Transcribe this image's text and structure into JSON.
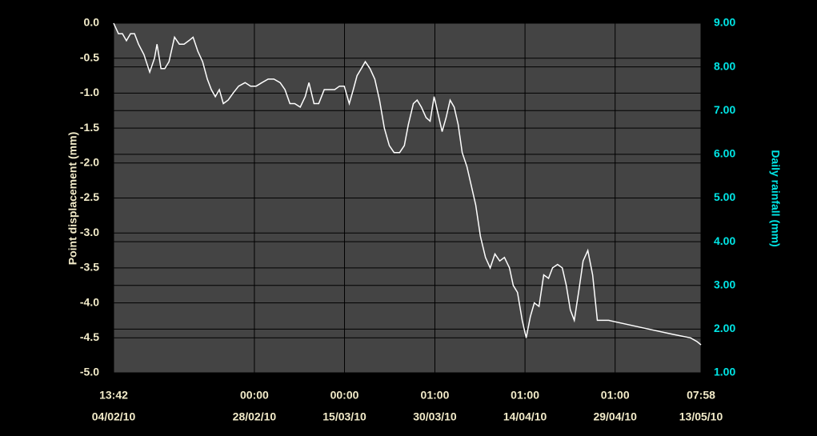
{
  "chart_data": {
    "type": "line",
    "ylabel": "Point displacement (mm)",
    "y2label": "Daily rainfall (mm)",
    "ylim": [
      -5,
      0
    ],
    "yticks": [
      {
        "value": 0,
        "label": "0.0"
      },
      -0.5,
      {
        "value": -1,
        "label": "-1.0"
      },
      -1.5,
      {
        "value": -2,
        "label": "-2.0"
      },
      -2.5,
      {
        "value": -3,
        "label": "-3.0"
      },
      -3.5,
      {
        "value": -4,
        "label": "-4.0"
      },
      -4.5,
      {
        "value": -5,
        "label": "-5.0"
      }
    ],
    "y2lim": [
      1,
      9
    ],
    "y2ticks": [
      {
        "value": 9,
        "label": "9.00"
      },
      {
        "value": 8,
        "label": "8.00"
      },
      {
        "value": 7,
        "label": "7.00"
      },
      {
        "value": 6,
        "label": "6.00"
      },
      {
        "value": 5,
        "label": "5.00"
      },
      {
        "value": 4,
        "label": "4.00"
      },
      {
        "value": 3,
        "label": "3.00"
      },
      {
        "value": 2,
        "label": "2.00"
      },
      {
        "value": 1,
        "label": "1.00"
      }
    ],
    "xlim": [
      "2010-02-04T13:42",
      "2010-05-13T07:58"
    ],
    "xticks": [
      {
        "value": "2010-02-04T13:42",
        "label": [
          "13:42",
          "04/02/10"
        ]
      },
      {
        "value": "2010-02-28T00:00",
        "label": [
          "00:00",
          "28/02/10"
        ]
      },
      {
        "value": "2010-03-15T00:00",
        "label": [
          "00:00",
          "15/03/10"
        ]
      },
      {
        "value": "2010-03-30T01:00",
        "label": [
          "01:00",
          "30/03/10"
        ]
      },
      {
        "value": "2010-04-14T01:00",
        "label": [
          "01:00",
          "14/04/10"
        ]
      },
      {
        "value": "2010-04-29T01:00",
        "label": [
          "01:00",
          "29/04/10"
        ]
      },
      {
        "value": "2010-05-13T07:58",
        "label": [
          "07:58",
          "13/05/10"
        ]
      }
    ],
    "grid": true,
    "series": [
      {
        "color": "#ffffff",
        "x": [
          "2010-02-04T13:42",
          "2010-02-05T09:00",
          "2010-02-06T01:00",
          "2010-02-06T17:00",
          "2010-02-07T09:00",
          "2010-02-08T01:00",
          "2010-02-08T17:00",
          "2010-02-09T15:00",
          "2010-02-10T14:00",
          "2010-02-11T09:00",
          "2010-02-11T19:00",
          "2010-02-12T11:00",
          "2010-02-13T02:00",
          "2010-02-13T19:00",
          "2010-02-14T17:00",
          "2010-02-15T12:00",
          "2010-02-16T07:00",
          "2010-02-17T02:00",
          "2010-02-17T19:00",
          "2010-02-18T14:00",
          "2010-02-19T09:00",
          "2010-02-20T04:00",
          "2010-02-20T20:00",
          "2010-02-21T12:00",
          "2010-02-22T04:00",
          "2010-02-22T20:00",
          "2010-02-23T15:00",
          "2010-02-24T11:00",
          "2010-02-25T09:00",
          "2010-02-26T11:00",
          "2010-02-27T09:00",
          "2010-02-28T07:00",
          "2010-03-01T06:00",
          "2010-03-02T07:00",
          "2010-03-03T06:00",
          "2010-03-04T07:00",
          "2010-03-05T02:00",
          "2010-03-05T22:00",
          "2010-03-06T17:00",
          "2010-03-07T15:00",
          "2010-03-08T11:00",
          "2010-03-09T02:00",
          "2010-03-09T22:00",
          "2010-03-10T17:00",
          "2010-03-11T15:00",
          "2010-03-12T11:00",
          "2010-03-13T09:00",
          "2010-03-14T04:00",
          "2010-03-14T23:00",
          "2010-03-15T19:00",
          "2010-03-16T11:00",
          "2010-03-17T02:00",
          "2010-03-17T19:00",
          "2010-03-18T11:00",
          "2010-03-19T06:00",
          "2010-03-20T01:00",
          "2010-03-20T20:00",
          "2010-03-21T15:00",
          "2010-03-22T11:00",
          "2010-03-23T06:00",
          "2010-03-24T04:00",
          "2010-03-24T23:00",
          "2010-03-25T15:00",
          "2010-03-26T11:00",
          "2010-03-27T02:00",
          "2010-03-27T19:00",
          "2010-03-28T14:00",
          "2010-03-29T06:00",
          "2010-03-29T22:00",
          "2010-03-30T14:00",
          "2010-03-31T06:00",
          "2010-03-31T22:00",
          "2010-04-01T14:00",
          "2010-04-02T06:00",
          "2010-04-02T22:00",
          "2010-04-03T14:00",
          "2010-04-04T09:00",
          "2010-04-05T04:00",
          "2010-04-05T20:00",
          "2010-04-06T15:00",
          "2010-04-07T11:00",
          "2010-04-08T06:00",
          "2010-04-09T01:00",
          "2010-04-09T20:00",
          "2010-04-10T15:00",
          "2010-04-11T11:00",
          "2010-04-12T02:00",
          "2010-04-12T19:00",
          "2010-04-13T14:00",
          "2010-04-14T06:00",
          "2010-04-14T22:00",
          "2010-04-15T14:00",
          "2010-04-16T09:00",
          "2010-04-17T04:00",
          "2010-04-17T23:00",
          "2010-04-18T15:00",
          "2010-04-19T11:00",
          "2010-04-20T06:00",
          "2010-04-20T22:00",
          "2010-04-21T14:00",
          "2010-04-22T06:00",
          "2010-04-23T01:00",
          "2010-04-23T17:00",
          "2010-04-24T12:00",
          "2010-04-25T07:00",
          "2010-04-26T02:00",
          "2010-04-26T22:00",
          "2010-04-27T23:00",
          "2010-05-03T07:00",
          "2010-05-08T15:00",
          "2010-05-11T14:00",
          "2010-05-12T15:00",
          "2010-05-13T07:58"
        ],
        "values": [
          0,
          -0.15,
          -0.15,
          -0.25,
          -0.15,
          -0.15,
          -0.3,
          -0.45,
          -0.7,
          -0.5,
          -0.3,
          -0.65,
          -0.65,
          -0.55,
          -0.2,
          -0.3,
          -0.3,
          -0.25,
          -0.2,
          -0.4,
          -0.55,
          -0.8,
          -0.95,
          -1.05,
          -0.95,
          -1.15,
          -1.1,
          -1,
          -0.9,
          -0.85,
          -0.9,
          -0.9,
          -0.85,
          -0.8,
          -0.8,
          -0.85,
          -0.95,
          -1.15,
          -1.15,
          -1.2,
          -1.05,
          -0.85,
          -1.15,
          -1.15,
          -0.95,
          -0.95,
          -0.95,
          -0.9,
          -0.9,
          -1.15,
          -0.95,
          -0.75,
          -0.65,
          -0.55,
          -0.65,
          -0.8,
          -1.1,
          -1.5,
          -1.75,
          -1.85,
          -1.85,
          -1.75,
          -1.45,
          -1.15,
          -1.1,
          -1.2,
          -1.35,
          -1.4,
          -1.05,
          -1.3,
          -1.55,
          -1.35,
          -1.1,
          -1.2,
          -1.45,
          -1.85,
          -2.05,
          -2.35,
          -2.6,
          -3.05,
          -3.35,
          -3.5,
          -3.3,
          -3.4,
          -3.35,
          -3.5,
          -3.75,
          -3.85,
          -4.25,
          -4.5,
          -4.2,
          -4,
          -4.05,
          -3.6,
          -3.65,
          -3.5,
          -3.45,
          -3.5,
          -3.75,
          -4.1,
          -4.25,
          -3.8,
          -3.4,
          -3.25,
          -3.6,
          -4.25,
          -4.25,
          -4.25,
          -4.35,
          -4.45,
          -4.5,
          -4.55,
          -4.6
        ]
      }
    ]
  }
}
